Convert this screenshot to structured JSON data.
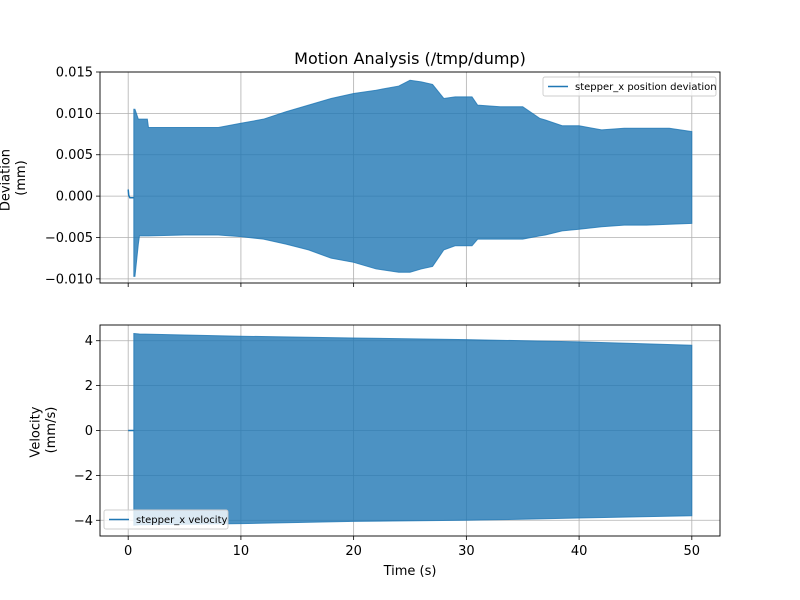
{
  "colors": {
    "series": "#1f77b4",
    "grid": "#b0b0b0",
    "axis": "#000000"
  },
  "chart_data": [
    {
      "type": "area",
      "title": "Motion Analysis (/tmp/dump)",
      "xlabel": "",
      "ylabel": "Deviation\n(mm)",
      "xlim": [
        -2.5,
        52.5
      ],
      "ylim": [
        -0.0105,
        0.015
      ],
      "xticks": [
        0,
        10,
        20,
        30,
        40,
        50
      ],
      "xtick_labels_shown": false,
      "yticks": [
        -0.01,
        -0.005,
        0.0,
        0.005,
        0.01,
        0.015
      ],
      "ytick_labels": [
        "−0.010",
        "−0.005",
        "0.000",
        "0.005",
        "0.010",
        "0.015"
      ],
      "grid": true,
      "legend_position": "top-right",
      "series": [
        {
          "name": "stepper_x position deviation",
          "x": [
            0.5,
            0.6,
            0.9,
            1.0,
            1.7,
            1.8,
            5,
            8,
            10,
            12,
            14,
            16,
            18,
            20,
            22,
            24,
            25,
            26,
            27,
            28,
            29,
            30.5,
            31,
            33,
            35,
            36.5,
            37,
            38.5,
            40,
            42,
            44,
            46,
            48,
            50
          ],
          "upper": [
            0.0105,
            0.0105,
            0.0093,
            0.0093,
            0.0093,
            0.0083,
            0.0083,
            0.0083,
            0.0088,
            0.0093,
            0.0102,
            0.011,
            0.0118,
            0.0124,
            0.0128,
            0.0133,
            0.014,
            0.0138,
            0.0135,
            0.0118,
            0.012,
            0.012,
            0.011,
            0.0108,
            0.0108,
            0.0094,
            0.0092,
            0.0085,
            0.0085,
            0.008,
            0.0082,
            0.0082,
            0.0082,
            0.0078
          ],
          "lower": [
            -0.0097,
            -0.0097,
            -0.0058,
            -0.0048,
            -0.0048,
            -0.0048,
            -0.0047,
            -0.0047,
            -0.0049,
            -0.0052,
            -0.0058,
            -0.0065,
            -0.0075,
            -0.008,
            -0.0088,
            -0.0092,
            -0.0092,
            -0.0088,
            -0.0085,
            -0.0065,
            -0.006,
            -0.006,
            -0.0052,
            -0.0052,
            -0.0052,
            -0.0048,
            -0.0047,
            -0.0042,
            -0.004,
            -0.0037,
            -0.0035,
            -0.0035,
            -0.0034,
            -0.0033
          ]
        }
      ],
      "pre_motion": {
        "x": [
          0.0,
          0.05,
          0.15,
          0.5
        ],
        "y": [
          0.0008,
          0.0001,
          -0.0002,
          -0.0002
        ]
      }
    },
    {
      "type": "area",
      "title": "",
      "xlabel": "Time (s)",
      "ylabel": "Velocity\n(mm/s)",
      "xlim": [
        -2.5,
        52.5
      ],
      "ylim": [
        -4.7,
        4.7
      ],
      "xticks": [
        0,
        10,
        20,
        30,
        40,
        50
      ],
      "xtick_labels": [
        "0",
        "10",
        "20",
        "30",
        "40",
        "50"
      ],
      "yticks": [
        -4,
        -2,
        0,
        2,
        4
      ],
      "ytick_labels": [
        "−4",
        "−2",
        "0",
        "2",
        "4"
      ],
      "grid": true,
      "legend_position": "bottom-left",
      "series": [
        {
          "name": "stepper_x velocity",
          "x": [
            0.5,
            1.0,
            10,
            20,
            30,
            40,
            50
          ],
          "upper": [
            4.32,
            4.3,
            4.2,
            4.12,
            4.05,
            3.95,
            3.8
          ],
          "lower": [
            -4.22,
            -4.2,
            -4.15,
            -4.05,
            -4.0,
            -3.9,
            -3.8
          ]
        }
      ],
      "pre_motion": {
        "x": [
          0.0,
          0.5
        ],
        "y": [
          0.0,
          0.0
        ]
      }
    }
  ]
}
